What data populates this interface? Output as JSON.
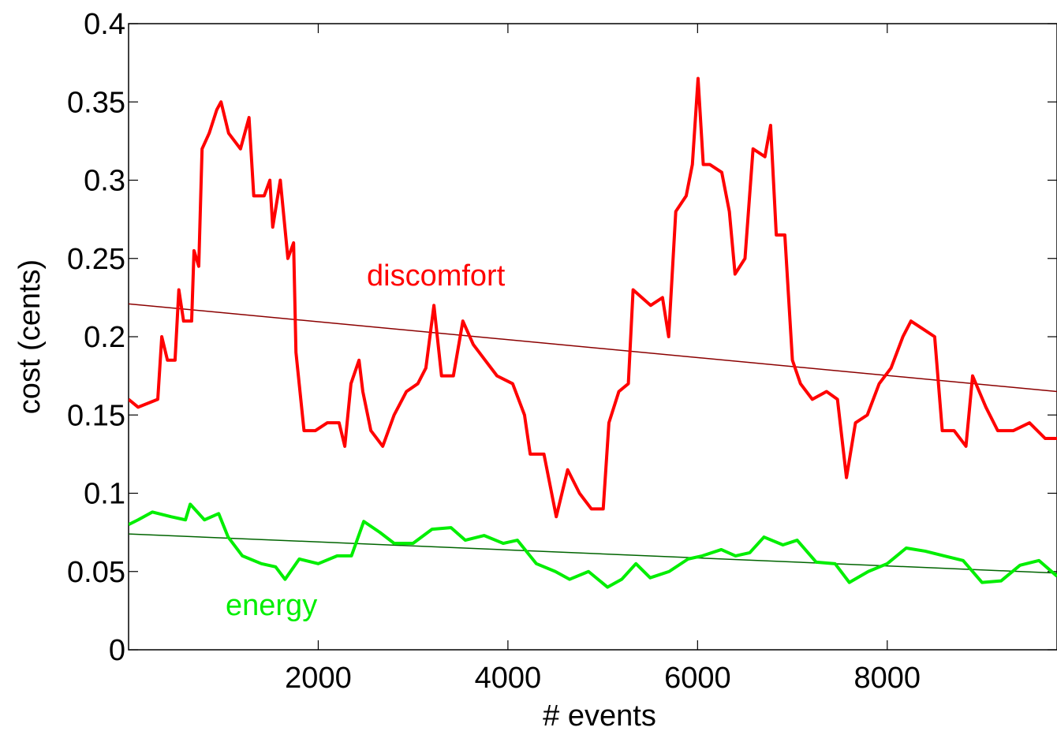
{
  "chart_data": {
    "type": "line",
    "xlabel": "# events",
    "ylabel": "cost (cents)",
    "xlim": [
      0,
      9790
    ],
    "ylim": [
      0,
      0.4
    ],
    "xticks": [
      2000,
      4000,
      6000,
      8000
    ],
    "yticks": [
      0,
      0.05,
      0.1,
      0.15,
      0.2,
      0.25,
      0.3,
      0.35,
      0.4
    ],
    "series": [
      {
        "name": "discomfort",
        "color": "#ff0000",
        "x": [
          0,
          100,
          308,
          350,
          410,
          490,
          530,
          580,
          665,
          690,
          740,
          775,
          850,
          930,
          975,
          1055,
          1180,
          1270,
          1320,
          1430,
          1490,
          1520,
          1600,
          1680,
          1740,
          1765,
          1850,
          1970,
          2095,
          2220,
          2280,
          2345,
          2430,
          2470,
          2555,
          2680,
          2800,
          2930,
          3050,
          3135,
          3220,
          3300,
          3425,
          3525,
          3635,
          3760,
          3885,
          4050,
          4175,
          4235,
          4380,
          4510,
          4630,
          4755,
          4880,
          5005,
          5065,
          5170,
          5270,
          5320,
          5505,
          5630,
          5695,
          5770,
          5880,
          5945,
          6005,
          6060,
          6130,
          6255,
          6335,
          6395,
          6500,
          6585,
          6710,
          6770,
          6830,
          6920,
          7000,
          7085,
          7210,
          7360,
          7475,
          7570,
          7665,
          7790,
          7915,
          8040,
          8165,
          8250,
          8375,
          8500,
          8580,
          8705,
          8830,
          8900,
          9040,
          9165,
          9330,
          9500,
          9665,
          9790
        ],
        "values": [
          0.16,
          0.155,
          0.16,
          0.2,
          0.185,
          0.185,
          0.23,
          0.21,
          0.21,
          0.255,
          0.245,
          0.32,
          0.33,
          0.345,
          0.35,
          0.33,
          0.32,
          0.34,
          0.29,
          0.29,
          0.3,
          0.27,
          0.3,
          0.25,
          0.26,
          0.19,
          0.14,
          0.14,
          0.145,
          0.145,
          0.13,
          0.17,
          0.185,
          0.165,
          0.14,
          0.13,
          0.15,
          0.165,
          0.17,
          0.18,
          0.22,
          0.175,
          0.175,
          0.21,
          0.195,
          0.185,
          0.175,
          0.17,
          0.15,
          0.125,
          0.125,
          0.085,
          0.115,
          0.1,
          0.09,
          0.09,
          0.145,
          0.165,
          0.17,
          0.23,
          0.22,
          0.225,
          0.2,
          0.28,
          0.29,
          0.31,
          0.365,
          0.31,
          0.31,
          0.305,
          0.28,
          0.24,
          0.25,
          0.32,
          0.315,
          0.335,
          0.265,
          0.265,
          0.185,
          0.17,
          0.16,
          0.165,
          0.16,
          0.11,
          0.145,
          0.15,
          0.17,
          0.18,
          0.2,
          0.21,
          0.205,
          0.2,
          0.14,
          0.14,
          0.13,
          0.175,
          0.155,
          0.14,
          0.14,
          0.145,
          0.135,
          0.135
        ],
        "trend": {
          "color": "#8b0000",
          "x": [
            0,
            9790
          ],
          "values": [
            0.221,
            0.165
          ]
        }
      },
      {
        "name": "energy",
        "color": "#00ee00",
        "x": [
          0,
          100,
          250,
          450,
          600,
          650,
          800,
          950,
          1050,
          1200,
          1400,
          1550,
          1650,
          1800,
          2000,
          2200,
          2350,
          2480,
          2650,
          2800,
          3000,
          3200,
          3400,
          3550,
          3750,
          3950,
          4100,
          4300,
          4500,
          4650,
          4850,
          5050,
          5200,
          5350,
          5500,
          5700,
          5900,
          6050,
          6250,
          6400,
          6550,
          6700,
          6900,
          7050,
          7250,
          7450,
          7600,
          7800,
          8000,
          8200,
          8400,
          8600,
          8800,
          9000,
          9200,
          9400,
          9600,
          9790
        ],
        "values": [
          0.08,
          0.083,
          0.088,
          0.085,
          0.083,
          0.093,
          0.083,
          0.087,
          0.072,
          0.06,
          0.055,
          0.053,
          0.045,
          0.058,
          0.055,
          0.06,
          0.06,
          0.082,
          0.075,
          0.068,
          0.068,
          0.077,
          0.078,
          0.07,
          0.073,
          0.068,
          0.07,
          0.055,
          0.05,
          0.045,
          0.05,
          0.04,
          0.045,
          0.055,
          0.046,
          0.05,
          0.058,
          0.06,
          0.064,
          0.06,
          0.062,
          0.072,
          0.067,
          0.07,
          0.056,
          0.055,
          0.043,
          0.05,
          0.055,
          0.065,
          0.063,
          0.06,
          0.057,
          0.043,
          0.044,
          0.054,
          0.057,
          0.047
        ],
        "trend": {
          "color": "#006400",
          "x": [
            0,
            9790
          ],
          "values": [
            0.074,
            0.049
          ]
        }
      }
    ]
  }
}
